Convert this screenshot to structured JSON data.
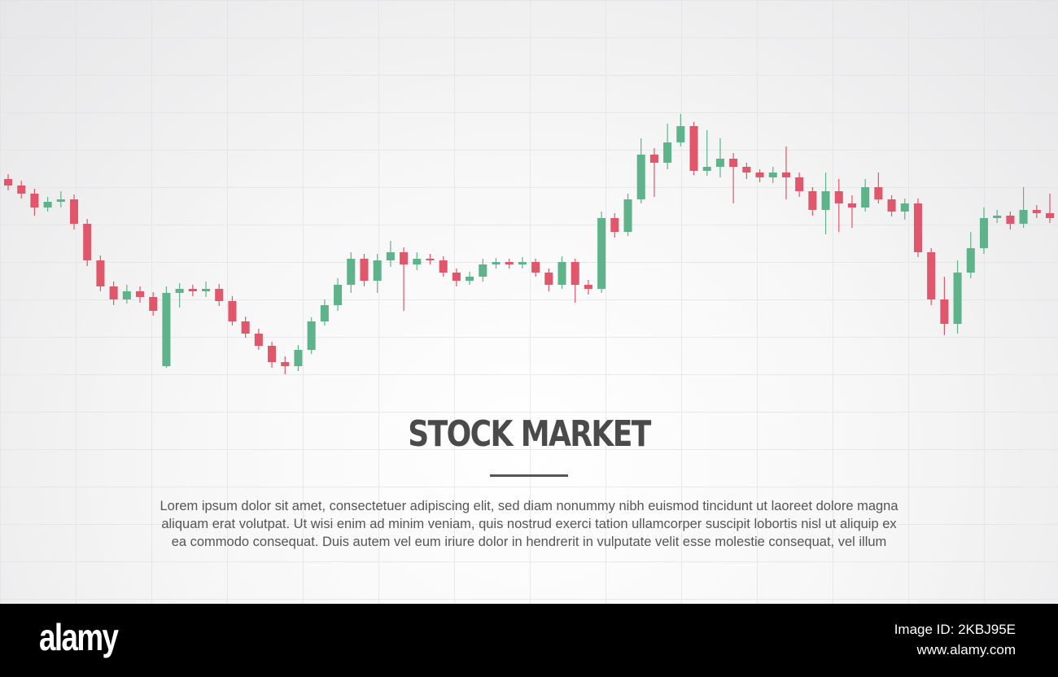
{
  "chart_data": {
    "type": "candlestick",
    "ylim": [
      0,
      340
    ],
    "up_color": "#5fb38a",
    "down_color": "#e0566b",
    "open": [
      250,
      242,
      232,
      215,
      222,
      225,
      195,
      150,
      118,
      102,
      112,
      105,
      20,
      110,
      115,
      112,
      115,
      100,
      75,
      60,
      45,
      25,
      20,
      40,
      75,
      95,
      120,
      152,
      125,
      150,
      160,
      145,
      152,
      150,
      135,
      125,
      130,
      145,
      148,
      145,
      148,
      135,
      120,
      148,
      120,
      115,
      202,
      185,
      225,
      280,
      270,
      295,
      315,
      260,
      265,
      275,
      265,
      258,
      252,
      258,
      252,
      235,
      212,
      235,
      220,
      215,
      240,
      225,
      210,
      220,
      160,
      102,
      72,
      135,
      165,
      202,
      205,
      195,
      212,
      208
    ],
    "high": [
      256,
      248,
      238,
      228,
      235,
      231,
      201,
      156,
      124,
      120,
      118,
      111,
      118,
      122,
      120,
      124,
      121,
      106,
      81,
      66,
      50,
      32,
      46,
      80,
      102,
      128,
      160,
      158,
      158,
      174,
      166,
      160,
      158,
      155,
      140,
      136,
      152,
      153,
      152,
      154,
      152,
      140,
      155,
      152,
      126,
      210,
      208,
      232,
      300,
      288,
      318,
      330,
      320,
      310,
      300,
      282,
      270,
      262,
      265,
      290,
      258,
      240,
      258,
      250,
      230,
      250,
      258,
      230,
      226,
      226,
      165,
      130,
      150,
      185,
      215,
      212,
      210,
      240,
      218,
      232
    ],
    "low": [
      236,
      226,
      205,
      210,
      215,
      188,
      143,
      112,
      95,
      97,
      98,
      82,
      18,
      92,
      106,
      105,
      94,
      70,
      55,
      40,
      18,
      10,
      14,
      35,
      70,
      88,
      110,
      118,
      110,
      142,
      88,
      138,
      145,
      130,
      118,
      120,
      124,
      140,
      140,
      140,
      130,
      112,
      115,
      98,
      108,
      110,
      178,
      180,
      220,
      228,
      262,
      290,
      255,
      254,
      252,
      220,
      250,
      246,
      245,
      225,
      228,
      205,
      182,
      185,
      190,
      210,
      220,
      204,
      200,
      154,
      95,
      58,
      60,
      128,
      158,
      196,
      188,
      190,
      202,
      196
    ],
    "close": [
      242,
      232,
      215,
      222,
      225,
      195,
      150,
      118,
      102,
      112,
      105,
      88,
      110,
      115,
      112,
      115,
      100,
      75,
      60,
      45,
      25,
      20,
      40,
      75,
      95,
      120,
      152,
      125,
      150,
      160,
      145,
      152,
      150,
      135,
      125,
      130,
      145,
      148,
      145,
      148,
      135,
      120,
      148,
      120,
      115,
      202,
      185,
      225,
      280,
      270,
      295,
      315,
      260,
      265,
      275,
      265,
      258,
      252,
      258,
      252,
      235,
      212,
      235,
      220,
      215,
      240,
      225,
      210,
      220,
      160,
      102,
      72,
      135,
      165,
      202,
      205,
      195,
      212,
      208,
      202
    ]
  },
  "header": {
    "title": "STOCK MARKET"
  },
  "body": {
    "lines": [
      "Lorem ipsum dolor sit amet, consectetuer adipiscing elit, sed diam nonummy nibh euismod tincidunt ut laoreet dolore magna",
      "aliquam erat volutpat. Ut wisi enim ad minim veniam, quis nostrud exerci tation ullamcorper suscipit lobortis nisl ut aliquip ex",
      "ea commodo consequat. Duis autem vel eum iriure dolor in hendrerit in vulputate velit esse molestie consequat, vel illum"
    ]
  },
  "footer": {
    "logo": "alamy",
    "image_id": "Image ID: 2KBJ95E",
    "site": "www.alamy.com"
  }
}
